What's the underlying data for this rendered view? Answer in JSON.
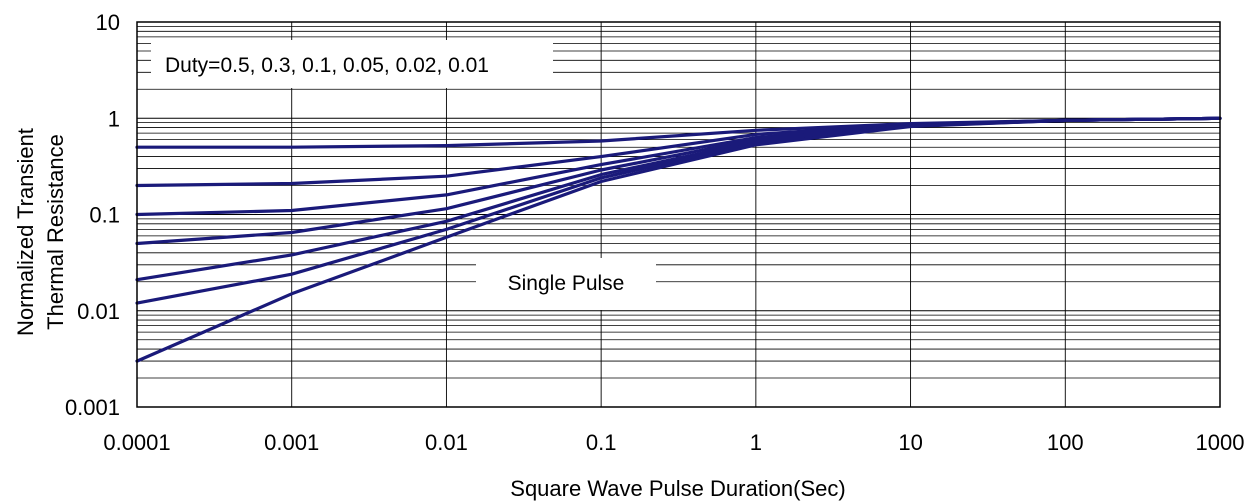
{
  "chart_data": {
    "type": "line",
    "x_scale": "log",
    "y_scale": "log",
    "xlabel": "Square Wave Pulse Duration(Sec)",
    "ylabel_line1": "Normalized Transient",
    "ylabel_line2": "Thermal Resistance",
    "xlim": [
      0.0001,
      1000
    ],
    "ylim": [
      0.001,
      10
    ],
    "x_ticks": [
      0.0001,
      0.001,
      0.01,
      0.1,
      1,
      10,
      100,
      1000
    ],
    "x_tick_labels": [
      "0.0001",
      "0.001",
      "0.01",
      "0.1",
      "1",
      "10",
      "100",
      "1000"
    ],
    "y_ticks": [
      0.001,
      0.01,
      0.1,
      1,
      10
    ],
    "y_tick_labels": [
      "0.001",
      "0.01",
      "0.1",
      "1",
      "10"
    ],
    "grid": true,
    "line_color": "#1a1a7a",
    "annotations": {
      "duty": "Duty=0.5, 0.3, 0.1, 0.05, 0.02, 0.01",
      "single_pulse": "Single Pulse"
    },
    "series": [
      {
        "x": [
          0.0001,
          0.001,
          0.01,
          0.1,
          1,
          10,
          100,
          1000
        ],
        "y": [
          0.5,
          0.5,
          0.52,
          0.58,
          0.75,
          0.88,
          0.95,
          1.0
        ]
      },
      {
        "x": [
          0.0001,
          0.001,
          0.01,
          0.1,
          1,
          10,
          100,
          1000
        ],
        "y": [
          0.2,
          0.21,
          0.25,
          0.4,
          0.68,
          0.87,
          0.95,
          1.0
        ]
      },
      {
        "x": [
          0.0001,
          0.001,
          0.01,
          0.1,
          1,
          10,
          100,
          1000
        ],
        "y": [
          0.1,
          0.11,
          0.16,
          0.33,
          0.63,
          0.86,
          0.95,
          1.0
        ]
      },
      {
        "x": [
          0.0001,
          0.001,
          0.01,
          0.1,
          1,
          10,
          100,
          1000
        ],
        "y": [
          0.05,
          0.065,
          0.115,
          0.29,
          0.6,
          0.85,
          0.95,
          1.0
        ]
      },
      {
        "x": [
          0.0001,
          0.001,
          0.01,
          0.1,
          1,
          10,
          100,
          1000
        ],
        "y": [
          0.021,
          0.038,
          0.085,
          0.26,
          0.57,
          0.84,
          0.95,
          1.0
        ]
      },
      {
        "x": [
          0.0001,
          0.001,
          0.01,
          0.1,
          1,
          10,
          100,
          1000
        ],
        "y": [
          0.012,
          0.024,
          0.07,
          0.24,
          0.55,
          0.83,
          0.95,
          1.0
        ]
      },
      {
        "x": [
          0.0001,
          0.001,
          0.01,
          0.1,
          1,
          10,
          100,
          1000
        ],
        "y": [
          0.003,
          0.015,
          0.058,
          0.22,
          0.53,
          0.82,
          0.95,
          1.0
        ]
      }
    ]
  }
}
